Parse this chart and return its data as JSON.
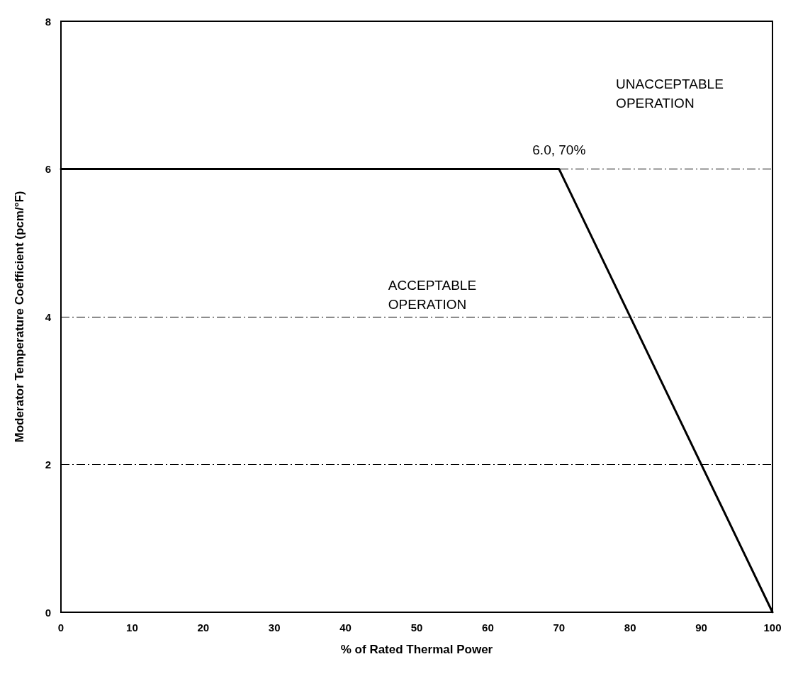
{
  "chart_data": {
    "type": "line",
    "xlabel": "% of Rated Thermal Power",
    "ylabel": "Moderator Temperature Coefficient (pcm/°F)",
    "x": [
      0,
      70,
      100
    ],
    "series": [
      {
        "color": "#000000",
        "values": [
          6,
          6,
          0
        ]
      }
    ],
    "xlim": [
      0,
      100
    ],
    "xticks": [
      0,
      10,
      20,
      30,
      40,
      50,
      60,
      70,
      80,
      90,
      100
    ],
    "ylim": [
      0,
      8
    ],
    "yticks": [
      0,
      2,
      4,
      6,
      8
    ],
    "grid": "y",
    "line_style": "solid",
    "marker": "none",
    "annotations": [
      "UNACCEPTABLE\nOPERATION",
      "ACCEPTABLE\nOPERATION",
      {
        "text": "6.0, 70%",
        "x": 70,
        "y": 6
      }
    ]
  }
}
